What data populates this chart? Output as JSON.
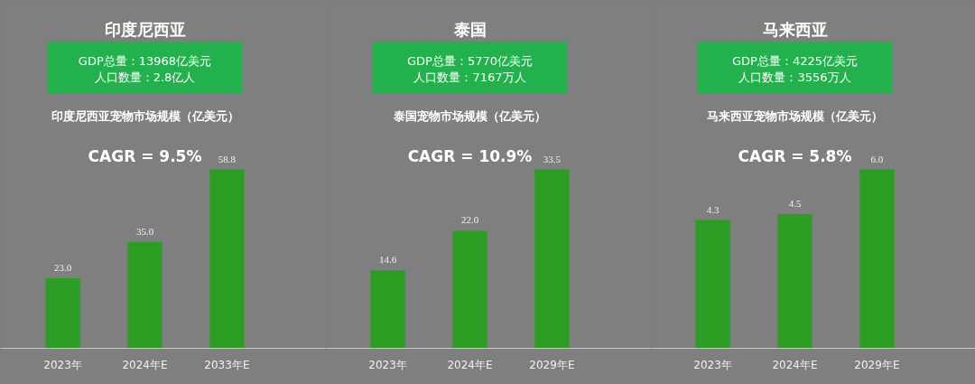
{
  "chart_data": [
    {
      "type": "bar",
      "title": "印度尼西亚",
      "subtitle": "印度尼西亚宠物市场规模（亿美元）",
      "annotations": [
        "GDP总量：13968亿美元",
        "人口数量：2.8亿人",
        "CAGR = 9.5%"
      ],
      "categories": [
        "2023年",
        "2024年E",
        "2033年E"
      ],
      "values": [
        23.0,
        35.0,
        58.8
      ],
      "value_labels": [
        "23.0",
        "35.0",
        "58.8"
      ],
      "color": "#2a9d22"
    },
    {
      "type": "bar",
      "title": "泰国",
      "subtitle": "泰国宠物市场规模（亿美元）",
      "annotations": [
        "GDP总量：5770亿美元",
        "人口数量：7167万人",
        "CAGR = 10.9%"
      ],
      "categories": [
        "2023年",
        "2024年E",
        "2029年E"
      ],
      "values": [
        14.6,
        22.0,
        33.5
      ],
      "value_labels": [
        "14.6",
        "22.0",
        "33.5"
      ],
      "color": "#2a9d22"
    },
    {
      "type": "bar",
      "title": "马来西亚",
      "subtitle": "马来西亚宠物市场规模（亿美元）",
      "annotations": [
        "GDP总量：4225亿美元",
        "人口数量：3556万人",
        "CAGR = 5.8%"
      ],
      "categories": [
        "2023年",
        "2024年E",
        "2029年E"
      ],
      "values": [
        4.3,
        4.5,
        6.0
      ],
      "value_labels": [
        "4.3",
        "4.5",
        "6.0"
      ],
      "color": "#2a9d22"
    }
  ]
}
